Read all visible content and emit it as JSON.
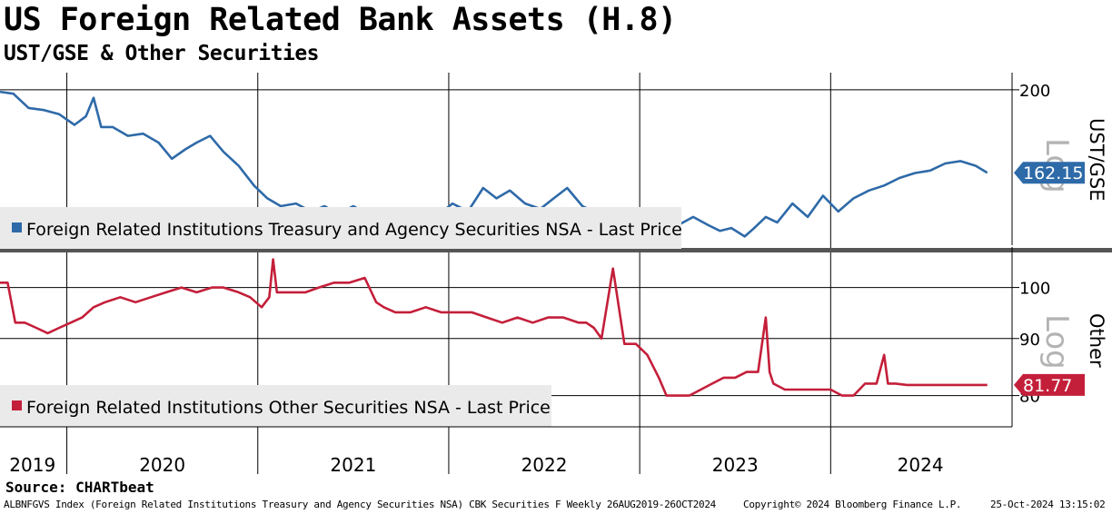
{
  "title": "US Foreign Related Bank Assets (H.8)",
  "subtitle": "UST/GSE & Other Securities",
  "source": "Source: CHARTbeat",
  "footer": {
    "left": "ALBNFGVS Index (Foreign Related Institutions Treasury and Agency Securities NSA) CBK Securities F  Weekly 26AUG2019-26OCT2024",
    "copyright": "Copyright© 2024 Bloomberg Finance L.P.",
    "timestamp": "25-Oct-2024 13:15:02"
  },
  "colors": {
    "blue": "#2e6aa8",
    "red": "#c41f3a",
    "grid": "#000000",
    "watermark": "#b3b3b3"
  },
  "chart_data": [
    {
      "type": "line",
      "name": "UST/GSE",
      "scale": "log",
      "axis_title": "UST/GSE",
      "watermark": "Log",
      "ylim": [
        135,
        206
      ],
      "ticks": [
        200
      ],
      "last_value": 162.15,
      "last_label": "162.15",
      "legend": "Foreign Related Institutions Treasury and Agency Securities NSA - Last Price",
      "x": [
        2019.65,
        2019.72,
        2019.8,
        2019.88,
        2019.96,
        2020.04,
        2020.1,
        2020.14,
        2020.18,
        2020.24,
        2020.32,
        2020.4,
        2020.48,
        2020.55,
        2020.62,
        2020.68,
        2020.75,
        2020.82,
        2020.9,
        2020.98,
        2021.05,
        2021.12,
        2021.2,
        2021.28,
        2021.35,
        2021.42,
        2021.5,
        2021.58,
        2021.65,
        2021.72,
        2021.8,
        2021.88,
        2021.95,
        2022.02,
        2022.1,
        2022.18,
        2022.25,
        2022.32,
        2022.4,
        2022.48,
        2022.55,
        2022.62,
        2022.7,
        2022.76,
        2022.82,
        2022.9,
        2022.98,
        2023.05,
        2023.12,
        2023.2,
        2023.28,
        2023.36,
        2023.42,
        2023.48,
        2023.55,
        2023.6,
        2023.66,
        2023.72,
        2023.8,
        2023.88,
        2023.96,
        2024.04,
        2024.12,
        2024.2,
        2024.28,
        2024.36,
        2024.44,
        2024.52,
        2024.6,
        2024.68,
        2024.76,
        2024.82
      ],
      "values": [
        199,
        198,
        191,
        190,
        188,
        183,
        187,
        196,
        182,
        182,
        178,
        179,
        175,
        168,
        172,
        175,
        178,
        171,
        165,
        157,
        152,
        149,
        150,
        147,
        149,
        146,
        149,
        146,
        148,
        146,
        148,
        147,
        146,
        150,
        147,
        156,
        152,
        155,
        150,
        148,
        152,
        156,
        149,
        147,
        145,
        146,
        144,
        148,
        141,
        142,
        145,
        142,
        140,
        141,
        138,
        141,
        145,
        143,
        150,
        145,
        153,
        147,
        152,
        155,
        157,
        160,
        162,
        163,
        166,
        167,
        165,
        162.15
      ]
    },
    {
      "type": "line",
      "name": "Other",
      "scale": "log",
      "axis_title": "Other",
      "watermark": "Log",
      "ylim": [
        75,
        107.5
      ],
      "ticks": [
        100,
        90,
        80
      ],
      "last_value": 81.77,
      "last_label": "81.77",
      "legend": "Foreign Related Institutions Other Securities NSA - Last Price",
      "x": [
        2019.65,
        2019.69,
        2019.73,
        2019.78,
        2019.84,
        2019.9,
        2019.96,
        2020.02,
        2020.08,
        2020.14,
        2020.2,
        2020.28,
        2020.36,
        2020.44,
        2020.52,
        2020.6,
        2020.68,
        2020.76,
        2020.82,
        2020.9,
        2020.96,
        2021.02,
        2021.06,
        2021.08,
        2021.1,
        2021.15,
        2021.2,
        2021.25,
        2021.32,
        2021.4,
        2021.48,
        2021.56,
        2021.62,
        2021.66,
        2021.72,
        2021.8,
        2021.88,
        2021.96,
        2022.04,
        2022.12,
        2022.2,
        2022.28,
        2022.36,
        2022.44,
        2022.52,
        2022.6,
        2022.68,
        2022.72,
        2022.76,
        2022.8,
        2022.86,
        2022.92,
        2022.98,
        2023.04,
        2023.1,
        2023.14,
        2023.2,
        2023.26,
        2023.32,
        2023.38,
        2023.44,
        2023.5,
        2023.56,
        2023.62,
        2023.66,
        2023.68,
        2023.7,
        2023.76,
        2023.82,
        2023.88,
        2023.94,
        2024.0,
        2024.06,
        2024.12,
        2024.18,
        2024.24,
        2024.28,
        2024.3,
        2024.34,
        2024.4,
        2024.46,
        2024.52,
        2024.56,
        2024.6,
        2024.68,
        2024.74,
        2024.82
      ],
      "values": [
        101,
        101,
        93,
        93,
        92,
        91,
        92,
        93,
        94,
        96,
        97,
        98,
        97,
        98,
        99,
        100,
        99,
        100,
        100,
        99,
        98,
        96,
        98,
        106,
        99,
        99,
        99,
        99,
        100,
        101,
        101,
        102,
        97,
        96,
        95,
        95,
        96,
        95,
        95,
        95,
        94,
        93,
        94,
        93,
        94,
        94,
        93,
        93,
        92,
        90,
        104,
        89,
        89,
        87,
        83,
        80,
        80,
        80,
        81,
        82,
        83,
        83,
        84,
        84,
        94,
        84,
        82,
        81,
        81,
        81,
        81,
        81,
        80,
        80,
        82,
        82,
        87,
        82,
        82,
        81.77,
        81.77,
        81.77,
        81.77,
        81.77,
        81.77,
        81.77,
        81.77
      ]
    }
  ],
  "x_axis": {
    "labels": [
      "2019",
      "2020",
      "2021",
      "2022",
      "2023",
      "2024"
    ],
    "xlim": [
      2019.65,
      2024.95
    ]
  }
}
